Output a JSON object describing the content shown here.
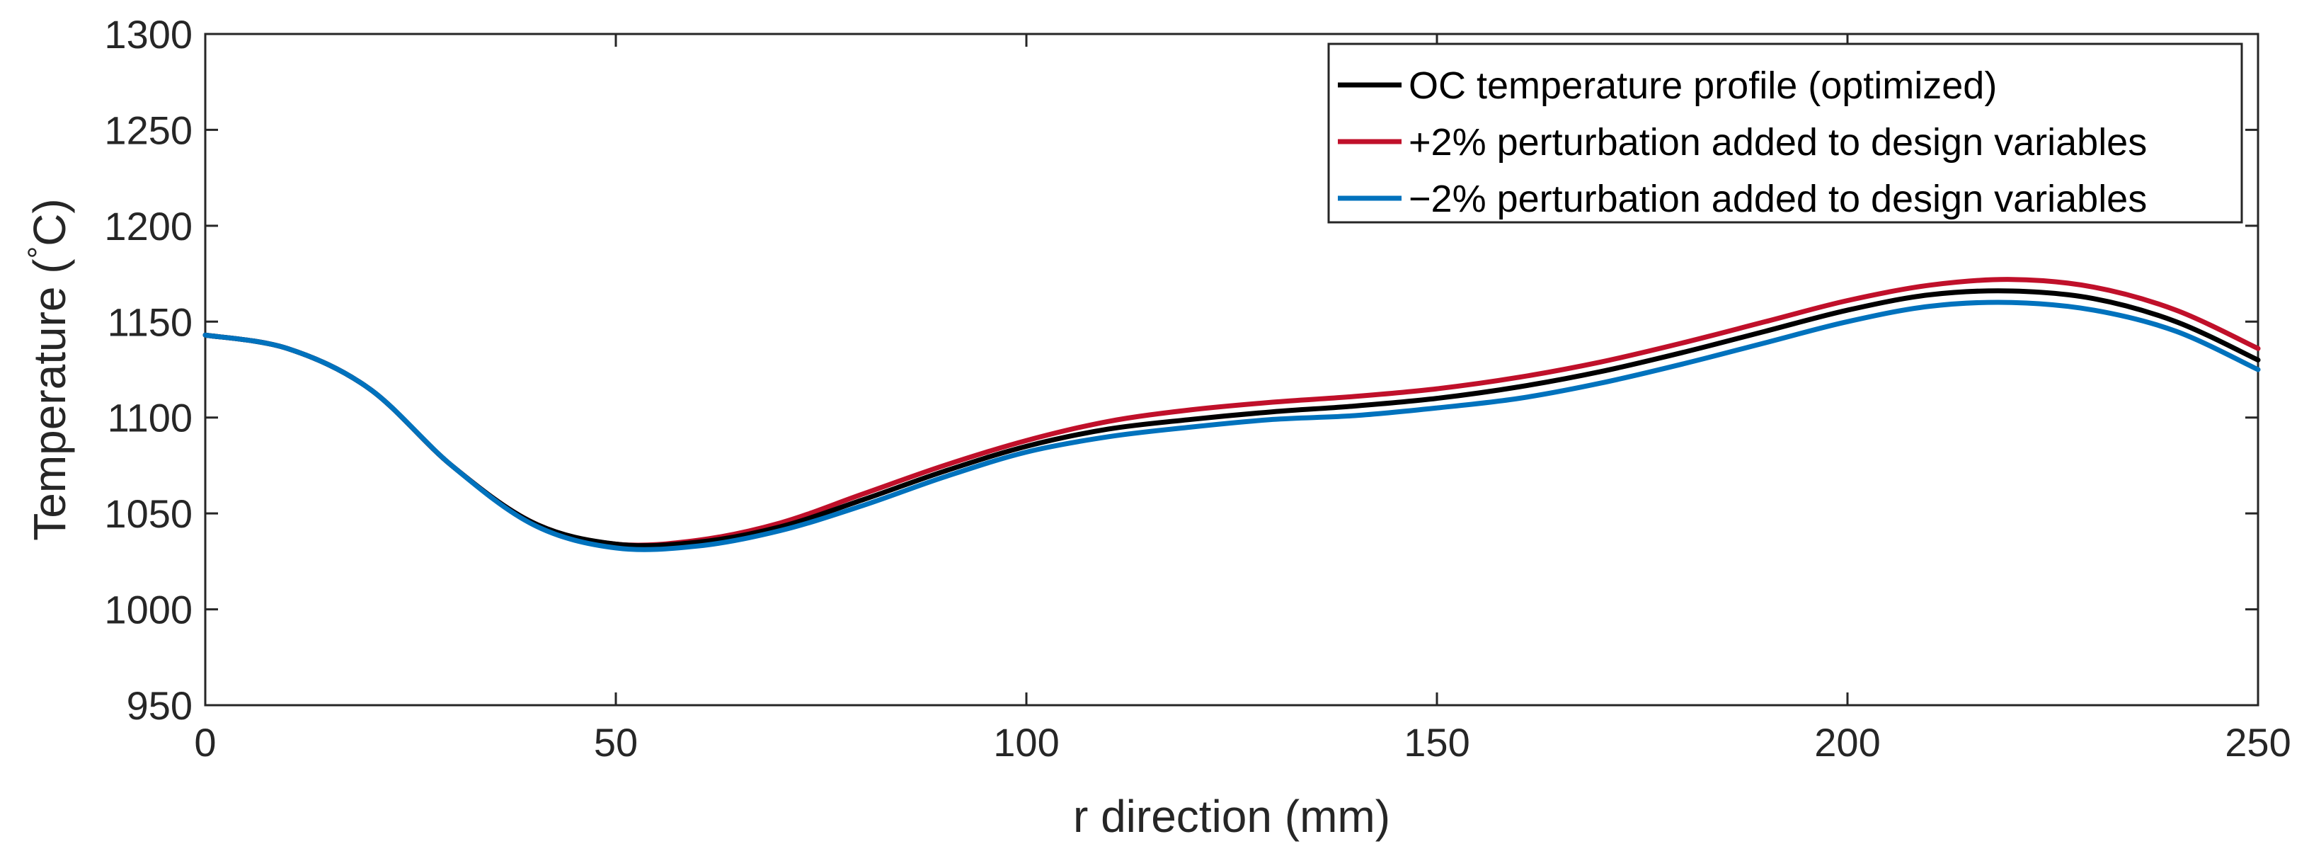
{
  "chart_data": {
    "type": "line",
    "title": "",
    "xlabel": "r direction (mm)",
    "ylabel_main": "Temperature (",
    "ylabel_degree": "°",
    "ylabel_unit": "C)",
    "xlim": [
      0,
      250
    ],
    "ylim": [
      950,
      1300
    ],
    "xticks": [
      0,
      50,
      100,
      150,
      200,
      250
    ],
    "yticks": [
      950,
      1000,
      1050,
      1100,
      1150,
      1200,
      1250,
      1300
    ],
    "xtick_labels": [
      "0",
      "50",
      "100",
      "150",
      "200",
      "250"
    ],
    "ytick_labels": [
      "950",
      "1000",
      "1050",
      "1100",
      "1150",
      "1200",
      "1250",
      "1300"
    ],
    "grid": false,
    "legend_position": "top-right",
    "x": [
      0,
      10,
      20,
      30,
      40,
      50,
      60,
      70,
      80,
      90,
      100,
      110,
      120,
      130,
      140,
      150,
      160,
      170,
      180,
      190,
      200,
      210,
      220,
      230,
      240,
      250
    ],
    "series": [
      {
        "name": "OC temperature profile (optimized)",
        "color": "#000000",
        "values": [
          1143,
          1136,
          1115,
          1075,
          1045,
          1034,
          1035,
          1043,
          1057,
          1072,
          1085,
          1094,
          1099,
          1103,
          1106,
          1110,
          1116,
          1124,
          1134,
          1145,
          1156,
          1164,
          1166,
          1162,
          1150,
          1130
        ]
      },
      {
        "name": "+2% perturbation added to design variables",
        "color": "#C0102A",
        "values": [
          1143,
          1136,
          1115,
          1075,
          1045,
          1034,
          1036,
          1045,
          1060,
          1075,
          1088,
          1098,
          1104,
          1108,
          1111,
          1115,
          1121,
          1129,
          1139,
          1150,
          1161,
          1169,
          1172,
          1168,
          1156,
          1136
        ]
      },
      {
        "name": "−2% perturbation added to design variables",
        "color": "#0072BD",
        "values": [
          1143,
          1136,
          1115,
          1075,
          1044,
          1032,
          1033,
          1041,
          1054,
          1069,
          1082,
          1090,
          1095,
          1099,
          1101,
          1105,
          1110,
          1118,
          1128,
          1139,
          1150,
          1158,
          1160,
          1156,
          1145,
          1125
        ]
      }
    ]
  }
}
